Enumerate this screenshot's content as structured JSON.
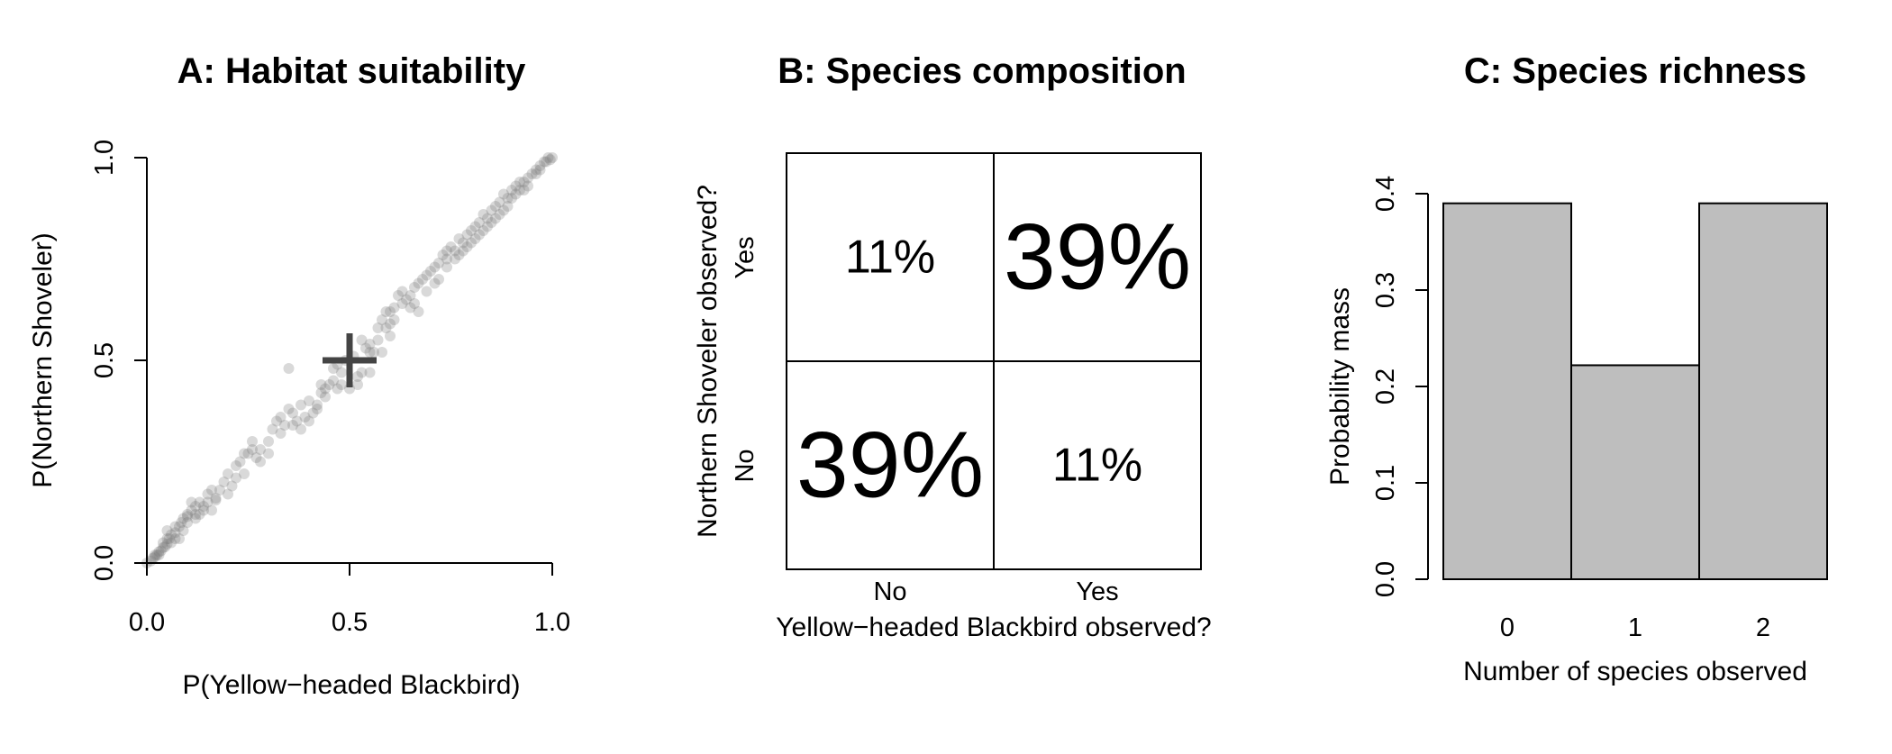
{
  "chart_data": [
    {
      "type": "scatter",
      "title": "A: Habitat suitability",
      "xlabel": "P(Yellow−headed Blackbird)",
      "ylabel": "P(Northern Shoveler)",
      "xlim": [
        0,
        1
      ],
      "ylim": [
        0,
        1
      ],
      "xticks": [
        "0.0",
        "0.5",
        "1.0"
      ],
      "yticks": [
        "0.0",
        "0.5",
        "1.0"
      ],
      "point_color": "#777777",
      "marker": {
        "x": 0.5,
        "y": 0.5,
        "symbol": "+"
      },
      "points": [
        [
          0.0,
          0.0
        ],
        [
          0.01,
          0.005
        ],
        [
          0.015,
          0.012
        ],
        [
          0.02,
          0.015
        ],
        [
          0.025,
          0.02
        ],
        [
          0.03,
          0.028
        ],
        [
          0.035,
          0.03
        ],
        [
          0.04,
          0.038
        ],
        [
          0.045,
          0.04
        ],
        [
          0.05,
          0.047
        ],
        [
          0.055,
          0.06
        ],
        [
          0.06,
          0.07
        ],
        [
          0.07,
          0.075
        ],
        [
          0.08,
          0.09
        ],
        [
          0.085,
          0.1
        ],
        [
          0.09,
          0.11
        ],
        [
          0.1,
          0.115
        ],
        [
          0.11,
          0.13
        ],
        [
          0.12,
          0.14
        ],
        [
          0.13,
          0.12
        ],
        [
          0.14,
          0.14
        ],
        [
          0.15,
          0.15
        ],
        [
          0.16,
          0.13
        ],
        [
          0.17,
          0.155
        ],
        [
          0.05,
          0.06
        ],
        [
          0.07,
          0.09
        ],
        [
          0.1,
          0.1
        ],
        [
          0.12,
          0.12
        ],
        [
          0.11,
          0.15
        ],
        [
          0.15,
          0.17
        ],
        [
          0.18,
          0.18
        ],
        [
          0.19,
          0.2
        ],
        [
          0.2,
          0.22
        ],
        [
          0.21,
          0.19
        ],
        [
          0.22,
          0.24
        ],
        [
          0.23,
          0.25
        ],
        [
          0.24,
          0.22
        ],
        [
          0.25,
          0.27
        ],
        [
          0.26,
          0.28
        ],
        [
          0.27,
          0.26
        ],
        [
          0.28,
          0.25
        ],
        [
          0.3,
          0.3
        ],
        [
          0.31,
          0.33
        ],
        [
          0.32,
          0.35
        ],
        [
          0.33,
          0.36
        ],
        [
          0.34,
          0.34
        ],
        [
          0.35,
          0.38
        ],
        [
          0.36,
          0.37
        ],
        [
          0.37,
          0.35
        ],
        [
          0.38,
          0.33
        ],
        [
          0.39,
          0.36
        ],
        [
          0.4,
          0.4
        ],
        [
          0.41,
          0.37
        ],
        [
          0.42,
          0.39
        ],
        [
          0.43,
          0.42
        ],
        [
          0.44,
          0.41
        ],
        [
          0.45,
          0.44
        ],
        [
          0.46,
          0.45
        ],
        [
          0.47,
          0.43
        ],
        [
          0.48,
          0.44
        ],
        [
          0.35,
          0.48
        ],
        [
          0.43,
          0.44
        ],
        [
          0.5,
          0.43
        ],
        [
          0.52,
          0.44
        ],
        [
          0.53,
          0.47
        ],
        [
          0.55,
          0.52
        ],
        [
          0.56,
          0.52
        ],
        [
          0.57,
          0.55
        ],
        [
          0.58,
          0.6
        ],
        [
          0.59,
          0.58
        ],
        [
          0.6,
          0.62
        ],
        [
          0.61,
          0.63
        ],
        [
          0.62,
          0.66
        ],
        [
          0.63,
          0.64
        ],
        [
          0.64,
          0.65
        ],
        [
          0.65,
          0.66
        ],
        [
          0.66,
          0.68
        ],
        [
          0.67,
          0.62
        ],
        [
          0.68,
          0.7
        ],
        [
          0.69,
          0.71
        ],
        [
          0.7,
          0.72
        ],
        [
          0.71,
          0.73
        ],
        [
          0.72,
          0.74
        ],
        [
          0.73,
          0.76
        ],
        [
          0.74,
          0.75
        ],
        [
          0.75,
          0.78
        ],
        [
          0.76,
          0.77
        ],
        [
          0.77,
          0.8
        ],
        [
          0.78,
          0.79
        ],
        [
          0.79,
          0.81
        ],
        [
          0.8,
          0.82
        ],
        [
          0.81,
          0.83
        ],
        [
          0.82,
          0.84
        ],
        [
          0.83,
          0.86
        ],
        [
          0.84,
          0.85
        ],
        [
          0.85,
          0.87
        ],
        [
          0.86,
          0.88
        ],
        [
          0.87,
          0.89
        ],
        [
          0.88,
          0.91
        ],
        [
          0.89,
          0.9
        ],
        [
          0.9,
          0.92
        ],
        [
          0.91,
          0.93
        ],
        [
          0.92,
          0.94
        ],
        [
          0.93,
          0.94
        ],
        [
          0.94,
          0.95
        ],
        [
          0.95,
          0.96
        ],
        [
          0.96,
          0.97
        ],
        [
          0.97,
          0.98
        ],
        [
          0.98,
          0.99
        ],
        [
          0.99,
          1.0
        ],
        [
          1.0,
          1.0
        ],
        [
          0.985,
          0.99
        ],
        [
          0.995,
          0.995
        ],
        [
          0.97,
          0.97
        ],
        [
          0.96,
          0.96
        ],
        [
          0.94,
          0.93
        ],
        [
          0.92,
          0.92
        ],
        [
          0.9,
          0.9
        ],
        [
          0.88,
          0.87
        ],
        [
          0.86,
          0.85
        ],
        [
          0.84,
          0.83
        ],
        [
          0.82,
          0.81
        ],
        [
          0.8,
          0.79
        ],
        [
          0.78,
          0.77
        ],
        [
          0.76,
          0.75
        ],
        [
          0.74,
          0.73
        ],
        [
          0.71,
          0.69
        ],
        [
          0.66,
          0.64
        ],
        [
          0.6,
          0.59
        ],
        [
          0.54,
          0.53
        ],
        [
          0.05,
          0.08
        ],
        [
          0.08,
          0.06
        ],
        [
          0.13,
          0.15
        ],
        [
          0.16,
          0.18
        ],
        [
          0.2,
          0.17
        ],
        [
          0.22,
          0.21
        ],
        [
          0.24,
          0.27
        ],
        [
          0.26,
          0.3
        ],
        [
          0.28,
          0.28
        ],
        [
          0.3,
          0.27
        ],
        [
          0.33,
          0.32
        ],
        [
          0.36,
          0.34
        ],
        [
          0.38,
          0.39
        ],
        [
          0.4,
          0.35
        ],
        [
          0.42,
          0.38
        ],
        [
          0.44,
          0.43
        ],
        [
          0.46,
          0.48
        ],
        [
          0.48,
          0.47
        ],
        [
          0.49,
          0.5
        ],
        [
          0.51,
          0.51
        ],
        [
          0.53,
          0.55
        ],
        [
          0.55,
          0.54
        ],
        [
          0.57,
          0.58
        ],
        [
          0.59,
          0.62
        ],
        [
          0.61,
          0.6
        ],
        [
          0.63,
          0.67
        ],
        [
          0.65,
          0.63
        ],
        [
          0.67,
          0.69
        ],
        [
          0.69,
          0.67
        ],
        [
          0.72,
          0.7
        ],
        [
          0.74,
          0.77
        ],
        [
          0.77,
          0.76
        ],
        [
          0.79,
          0.78
        ],
        [
          0.81,
          0.8
        ],
        [
          0.83,
          0.82
        ],
        [
          0.85,
          0.84
        ],
        [
          0.87,
          0.86
        ],
        [
          0.89,
          0.88
        ],
        [
          0.91,
          0.91
        ],
        [
          0.93,
          0.92
        ],
        [
          0.02,
          0.02
        ],
        [
          0.03,
          0.02
        ],
        [
          0.04,
          0.05
        ],
        [
          0.06,
          0.05
        ],
        [
          0.07,
          0.06
        ],
        [
          0.09,
          0.08
        ],
        [
          0.1,
          0.12
        ],
        [
          0.12,
          0.11
        ],
        [
          0.14,
          0.13
        ],
        [
          0.17,
          0.16
        ],
        [
          0.52,
          0.46
        ],
        [
          0.55,
          0.47
        ],
        [
          0.58,
          0.52
        ],
        [
          0.6,
          0.56
        ],
        [
          0.47,
          0.49
        ]
      ]
    },
    {
      "type": "table",
      "title": "B: Species composition",
      "xlabel": "Yellow−headed Blackbird observed?",
      "ylabel": "Northern Shoveler observed?",
      "col_labels": [
        "No",
        "Yes"
      ],
      "row_labels": [
        "Yes",
        "No"
      ],
      "cells": [
        [
          "11%",
          "39%"
        ],
        [
          "39%",
          "11%"
        ]
      ],
      "values": [
        [
          0.11,
          0.39
        ],
        [
          0.39,
          0.11
        ]
      ]
    },
    {
      "type": "bar",
      "title": "C: Species richness",
      "xlabel": "Number of species observed",
      "ylabel": "Probability mass",
      "categories": [
        "0",
        "1",
        "2"
      ],
      "values": [
        0.39,
        0.222,
        0.39
      ],
      "ylim": [
        0,
        0.4
      ],
      "yticks": [
        "0.0",
        "0.1",
        "0.2",
        "0.3",
        "0.4"
      ],
      "bar_color": "#bebebe"
    }
  ]
}
